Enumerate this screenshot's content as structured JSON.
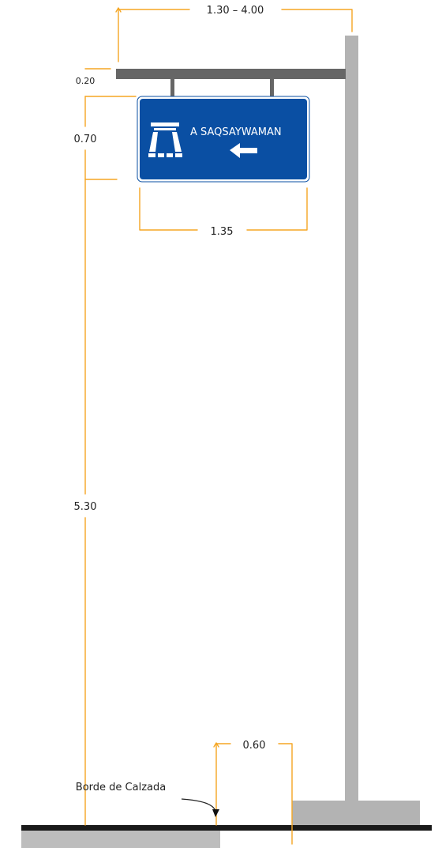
{
  "sign": {
    "text": "A SAQSAYWAMAN",
    "background_color": "#0a4fa3",
    "symbol": "saqsaywaman-ruins-icon",
    "arrow": "left-arrow-icon"
  },
  "dimensions": {
    "arm_length": "1.30 –  4.00",
    "arm_thickness": "0.20",
    "sign_height": "0.70",
    "sign_width": "1.35",
    "clearance_height": "5.30",
    "edge_offset": "0.60"
  },
  "labels": {
    "road_edge": "Borde de Calzada"
  },
  "colors": {
    "dimension_lines": "#f5a623",
    "post": "#b3b3b3",
    "arm": "#666666",
    "road": "#1a1a1a",
    "ground": "#bdbdbd"
  }
}
